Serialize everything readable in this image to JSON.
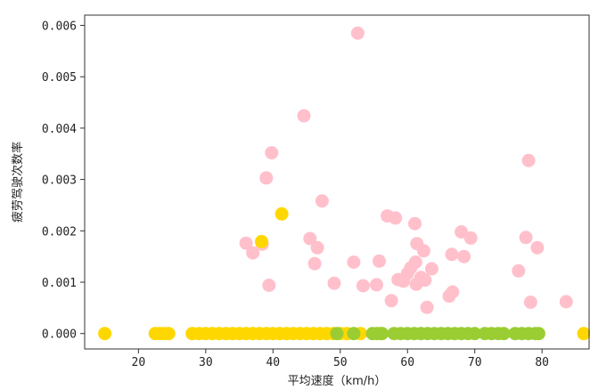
{
  "chart_data": {
    "type": "scatter",
    "title": "",
    "xlabel": "平均速度（km/h）",
    "ylabel": "疲劳驾驶次数率",
    "xlim": [
      12,
      87
    ],
    "ylim": [
      -0.0003,
      0.0062
    ],
    "xticks": [
      {
        "value": 20,
        "label": "20"
      },
      {
        "value": 30,
        "label": "30"
      },
      {
        "value": 40,
        "label": "40"
      },
      {
        "value": 50,
        "label": "50"
      },
      {
        "value": 60,
        "label": "60"
      },
      {
        "value": 70,
        "label": "70"
      },
      {
        "value": 80,
        "label": "80"
      }
    ],
    "yticks": [
      {
        "value": 0.0,
        "label": "0.000"
      },
      {
        "value": 0.001,
        "label": "0.001"
      },
      {
        "value": 0.002,
        "label": "0.002"
      },
      {
        "value": 0.003,
        "label": "0.003"
      },
      {
        "value": 0.004,
        "label": "0.004"
      },
      {
        "value": 0.005,
        "label": "0.005"
      },
      {
        "value": 0.006,
        "label": "0.006"
      }
    ],
    "grid": false,
    "legend": "none",
    "series": [
      {
        "color": "#FFC0CB",
        "points": [
          [
            36,
            0.00176
          ],
          [
            37,
            0.00157
          ],
          [
            38.4,
            0.00174
          ],
          [
            39,
            0.00303
          ],
          [
            39.4,
            0.00094
          ],
          [
            39.8,
            0.00352
          ],
          [
            44.6,
            0.00424
          ],
          [
            45.5,
            0.00185
          ],
          [
            46.2,
            0.00136
          ],
          [
            46.6,
            0.00167
          ],
          [
            47.3,
            0.00258
          ],
          [
            49.1,
            0.00098
          ],
          [
            52,
            0.00139
          ],
          [
            52.6,
            0.00585
          ],
          [
            53.4,
            0.00093
          ],
          [
            55.4,
            0.00095
          ],
          [
            55.8,
            0.00141
          ],
          [
            57,
            0.00229
          ],
          [
            57.6,
            0.00064
          ],
          [
            58.2,
            0.00225
          ],
          [
            58.6,
            0.00105
          ],
          [
            59.4,
            0.00102
          ],
          [
            60,
            0.00117
          ],
          [
            60.5,
            0.00128
          ],
          [
            61.1,
            0.00214
          ],
          [
            61.2,
            0.00139
          ],
          [
            61.3,
            0.00096
          ],
          [
            61.4,
            0.00175
          ],
          [
            62,
            0.00109
          ],
          [
            62.4,
            0.00161
          ],
          [
            62.6,
            0.00104
          ],
          [
            62.9,
            0.00051
          ],
          [
            63.6,
            0.00126
          ],
          [
            66.2,
            0.00073
          ],
          [
            66.7,
            0.00081
          ],
          [
            66.6,
            0.00154
          ],
          [
            68,
            0.00198
          ],
          [
            68.4,
            0.0015
          ],
          [
            69.4,
            0.00186
          ],
          [
            76.5,
            0.00122
          ],
          [
            77.6,
            0.00187
          ],
          [
            78,
            0.00337
          ],
          [
            78.3,
            0.00061
          ],
          [
            79.3,
            0.00167
          ],
          [
            83.6,
            0.00062
          ]
        ]
      },
      {
        "color": "#FFD700",
        "points": [
          [
            15,
            0.0
          ],
          [
            22.5,
            0.0
          ],
          [
            23.2,
            0.0
          ],
          [
            23.8,
            0.0
          ],
          [
            24.5,
            0.0
          ],
          [
            28,
            0.0
          ],
          [
            29,
            0.0
          ],
          [
            30,
            0.0
          ],
          [
            31,
            0.0
          ],
          [
            32,
            0.0
          ],
          [
            33,
            0.0
          ],
          [
            34,
            0.0
          ],
          [
            35,
            0.0
          ],
          [
            36,
            0.0
          ],
          [
            37,
            0.0
          ],
          [
            38,
            0.0
          ],
          [
            39,
            0.0
          ],
          [
            40,
            0.0
          ],
          [
            41,
            0.0
          ],
          [
            42,
            0.0
          ],
          [
            43,
            0.0
          ],
          [
            44,
            0.0
          ],
          [
            45,
            0.0
          ],
          [
            46,
            0.0
          ],
          [
            47,
            0.0
          ],
          [
            48,
            0.0
          ],
          [
            49,
            0.0
          ],
          [
            50,
            0.0
          ],
          [
            51,
            0.0
          ],
          [
            53,
            0.0
          ],
          [
            56,
            0.0
          ],
          [
            38.3,
            0.00179
          ],
          [
            41.3,
            0.00233
          ],
          [
            86.2,
            0.0
          ]
        ]
      },
      {
        "color": "#9ACD32",
        "points": [
          [
            49.5,
            0.0
          ],
          [
            52,
            0.0
          ],
          [
            54.8,
            0.0
          ],
          [
            55.5,
            0.0
          ],
          [
            56.2,
            0.0
          ],
          [
            58,
            0.0
          ],
          [
            59,
            0.0
          ],
          [
            60,
            0.0
          ],
          [
            61,
            0.0
          ],
          [
            62,
            0.0
          ],
          [
            63,
            0.0
          ],
          [
            64,
            0.0
          ],
          [
            65,
            0.0
          ],
          [
            66,
            0.0
          ],
          [
            67,
            0.0
          ],
          [
            68,
            0.0
          ],
          [
            69,
            0.0
          ],
          [
            70,
            0.0
          ],
          [
            71.5,
            0.0
          ],
          [
            72.5,
            0.0
          ],
          [
            73.5,
            0.0
          ],
          [
            74.3,
            0.0
          ],
          [
            76,
            0.0
          ],
          [
            77,
            0.0
          ],
          [
            78,
            0.0
          ],
          [
            79,
            0.0
          ],
          [
            79.5,
            0.0
          ]
        ]
      }
    ]
  }
}
